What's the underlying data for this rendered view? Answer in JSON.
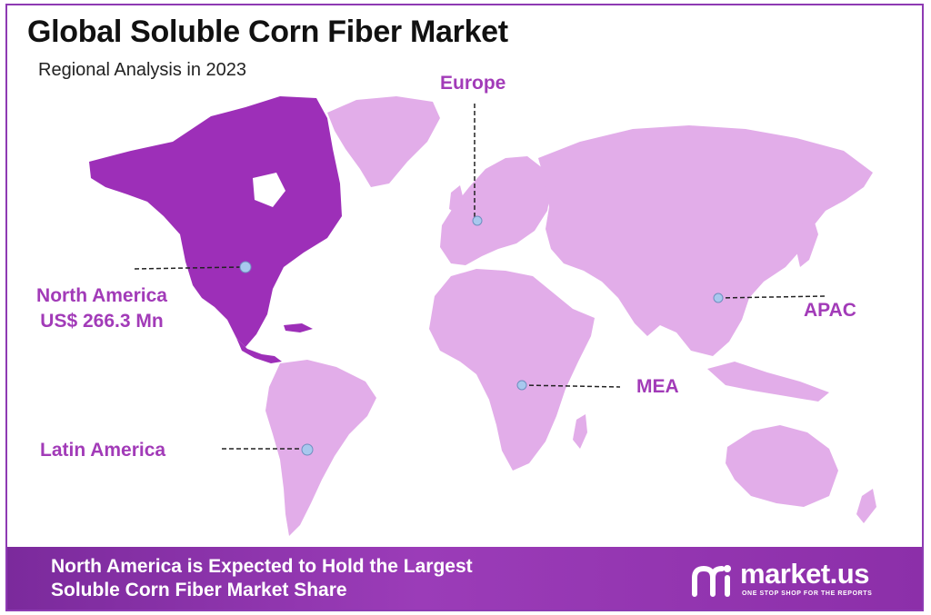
{
  "header": {
    "title": "Global Soluble Corn Fiber Market",
    "subtitle": "Regional Analysis in 2023"
  },
  "regions": [
    {
      "id": "north-america",
      "name": "North America",
      "value": "US$ 266.3 Mn",
      "highlighted": true
    },
    {
      "id": "europe",
      "name": "Europe",
      "highlighted": false
    },
    {
      "id": "apac",
      "name": "APAC",
      "highlighted": false
    },
    {
      "id": "mea",
      "name": "MEA",
      "highlighted": false
    },
    {
      "id": "latin-america",
      "name": "Latin America",
      "highlighted": false
    }
  ],
  "colors": {
    "highlight_region": "#9d2fb8",
    "other_regions": "#e2ade9",
    "label_text": "#a23bb8",
    "marker_fill": "#a8c8ee",
    "footer_background": "#8c2fa9",
    "frame_border": "#8e3ab3"
  },
  "footer": {
    "line1": "North America is Expected to Hold the Largest",
    "line2": "Soluble Corn Fiber Market Share"
  },
  "brand": {
    "name": "market.us",
    "tagline": "ONE STOP SHOP FOR THE REPORTS",
    "icon": "market-us-logo-icon"
  }
}
